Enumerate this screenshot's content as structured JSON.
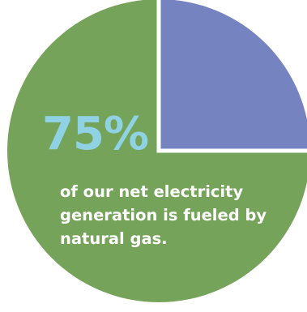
{
  "chart_data": {
    "type": "pie",
    "slices": [
      {
        "value": 75,
        "color": "#76a35a"
      },
      {
        "value": 25,
        "color": "#7683c1"
      }
    ],
    "start_slice": 1,
    "highlight": {
      "text": "75%",
      "color": "#8fd2e4"
    },
    "caption": "of our net electricity generation is fueled by natural gas."
  }
}
